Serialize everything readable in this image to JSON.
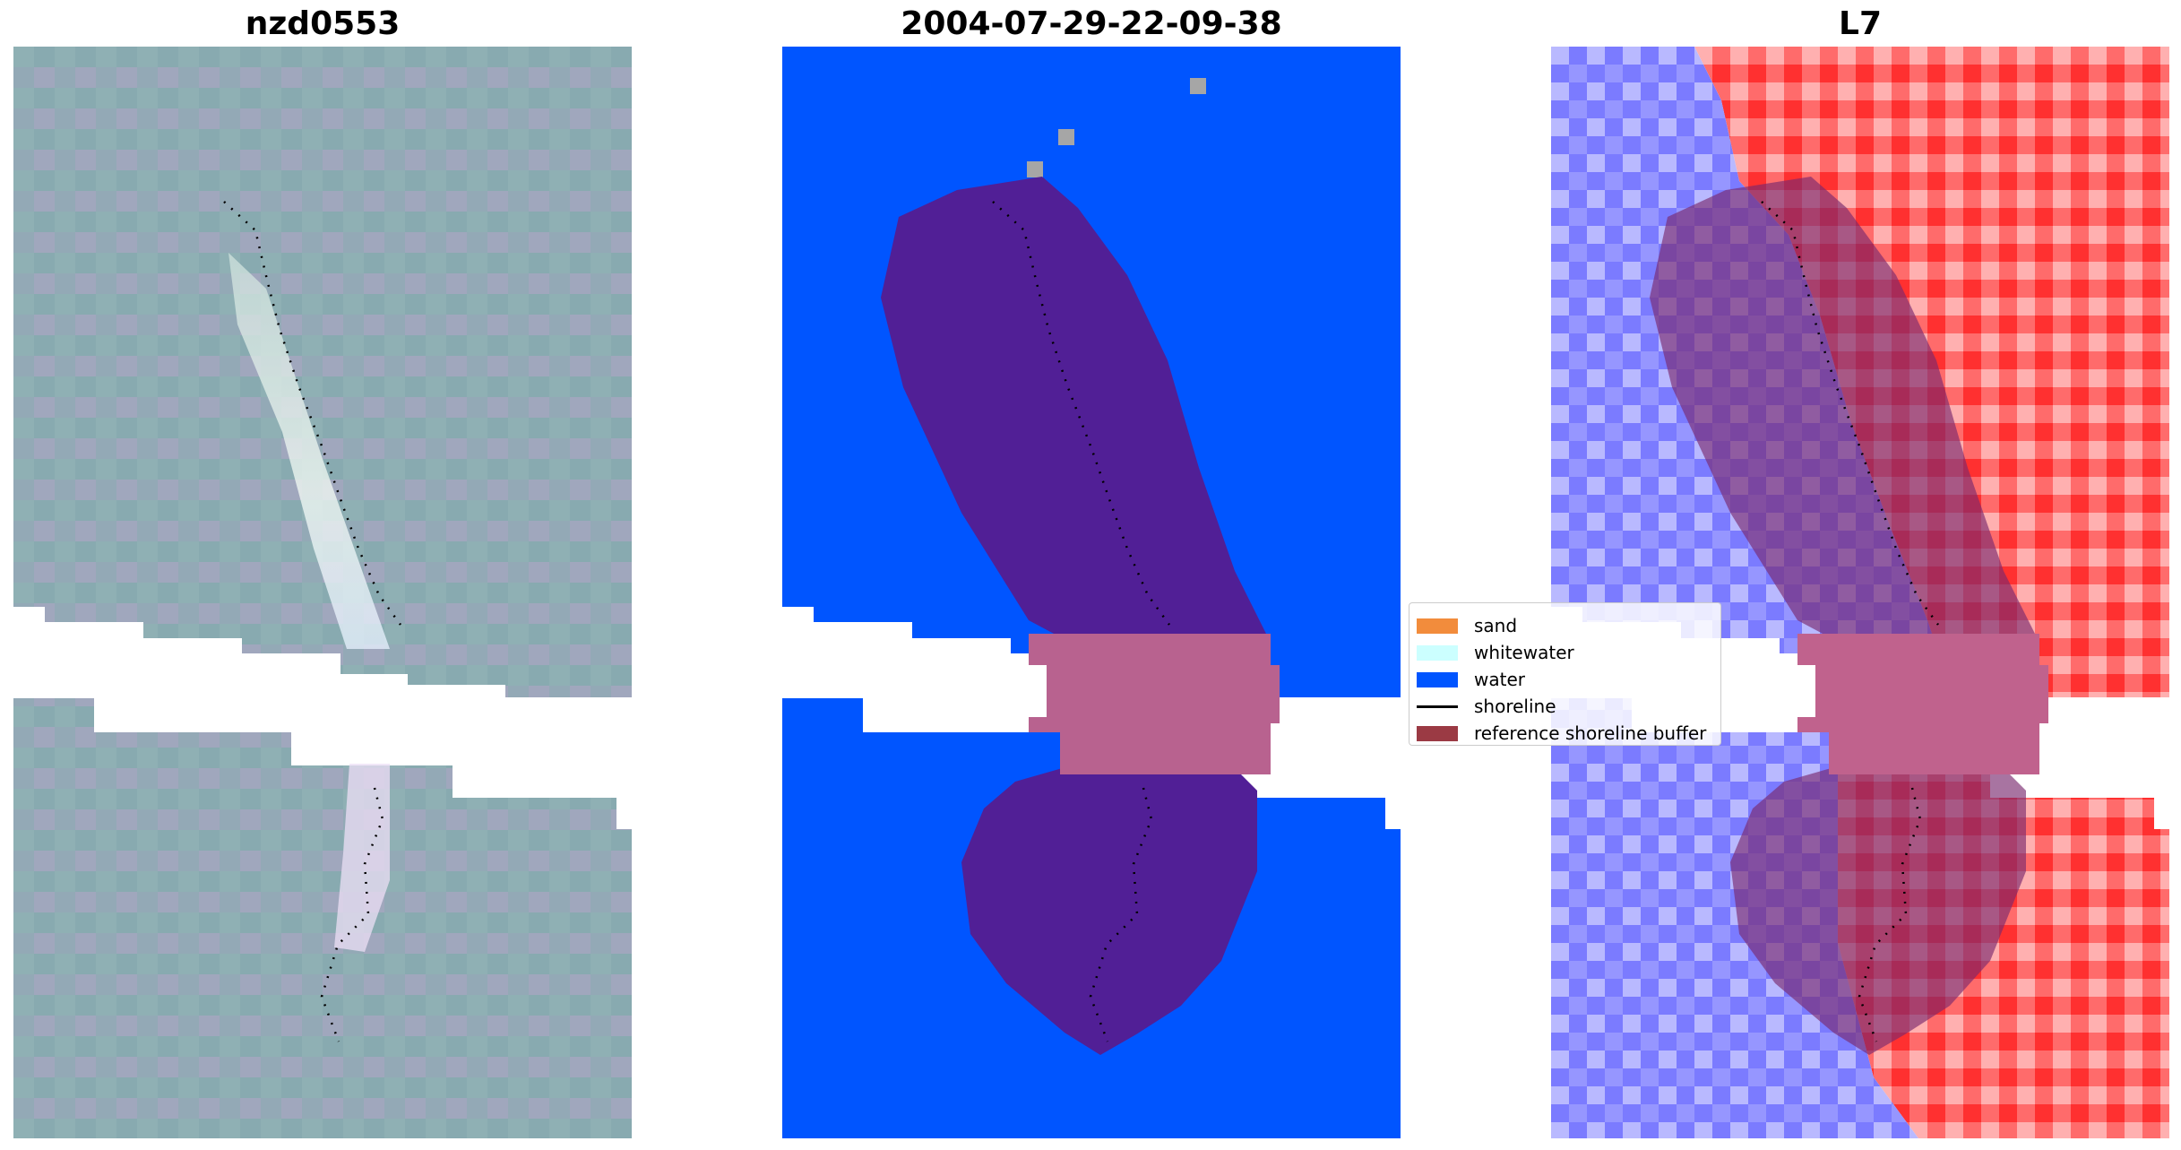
{
  "titles": {
    "left": "nzd0553",
    "center": "2004-07-29-22-09-38",
    "right": "L7"
  },
  "legend": {
    "items": [
      {
        "label": "sand",
        "color": "#f28c3c"
      },
      {
        "label": "whitewater",
        "color": "#ccffff"
      },
      {
        "label": "water",
        "color": "#0055ff"
      },
      {
        "label": "shoreline",
        "color": "#000000"
      },
      {
        "label": "reference shoreline buffer",
        "color": "#9b3a44"
      }
    ]
  },
  "colors": {
    "water": "#0055ff",
    "buffer_on_water": "#511f96",
    "buffer_on_nodata": "#b8628f",
    "shoreline": "#000000",
    "nodata": "#ffffff",
    "unclassified": "#a6a6a6"
  }
}
